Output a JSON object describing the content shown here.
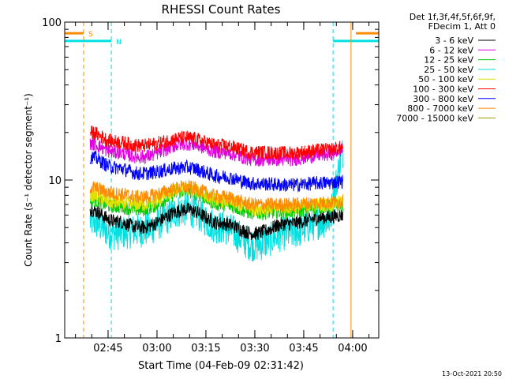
{
  "chart_data": {
    "type": "line",
    "title": "RHESSI Count Rates",
    "xlabel": "Start Time (04-Feb-09 02:31:42)",
    "ylabel": "Count Rate (s⁻¹ detector segment⁻¹)",
    "y_scale": "log",
    "ylim": [
      1,
      100
    ],
    "y_ticks": [
      1,
      10,
      100
    ],
    "y_tick_labels": [
      "1",
      "10",
      "100"
    ],
    "x_range": [
      "02:31:42",
      "04:08:00"
    ],
    "x_ticks": [
      "02:45",
      "03:00",
      "03:15",
      "03:30",
      "03:45",
      "04:00"
    ],
    "legend_header": [
      "Det 1f,3f,4f,5f,6f,9f,",
      "FDecim 1, Att 0"
    ],
    "legend_position": "right-outside",
    "timestamp": "13-Oct-2021 20:50",
    "series": [
      {
        "name": "3 - 6 keV",
        "color": "#000000",
        "x": [
          "02:39:30",
          "02:47:00",
          "02:55:00",
          "03:09:00",
          "03:20:00",
          "03:30:00",
          "03:40:00",
          "03:52:00",
          "03:57:00"
        ],
        "values": [
          6.5,
          5.5,
          5.0,
          6.5,
          5.3,
          4.6,
          5.3,
          5.8,
          6.0
        ]
      },
      {
        "name": "6 - 12 keV",
        "color": "#e000e0",
        "x": [
          "02:39:30",
          "02:47:00",
          "02:55:00",
          "03:09:00",
          "03:20:00",
          "03:30:00",
          "03:40:00",
          "03:52:00",
          "03:57:00"
        ],
        "values": [
          17.0,
          15.0,
          14.0,
          17.0,
          15.0,
          13.5,
          13.5,
          14.5,
          15.5
        ]
      },
      {
        "name": "12 - 25 keV",
        "color": "#00cc00",
        "x": [
          "02:39:30",
          "02:47:00",
          "02:55:00",
          "03:09:00",
          "03:20:00",
          "03:30:00",
          "03:40:00",
          "03:52:00",
          "03:57:00"
        ],
        "values": [
          7.5,
          6.8,
          6.5,
          8.5,
          7.0,
          6.2,
          6.3,
          6.8,
          7.0
        ]
      },
      {
        "name": "25 - 50 keV",
        "color": "#00e0e0",
        "x": [
          "02:39:30",
          "02:47:00",
          "02:55:00",
          "03:09:00",
          "03:20:00",
          "03:30:00",
          "03:40:00",
          "03:52:00",
          "03:57:00"
        ],
        "values": [
          5.5,
          4.6,
          4.8,
          6.5,
          5.0,
          3.9,
          4.6,
          5.5,
          8.5
        ]
      },
      {
        "name": "50 - 100 keV",
        "color": "#e0e000",
        "x": [
          "02:39:30",
          "02:47:00",
          "02:55:00",
          "03:09:00",
          "03:20:00",
          "03:30:00",
          "03:40:00",
          "03:52:00",
          "03:57:00"
        ],
        "values": [
          8.0,
          7.2,
          7.0,
          8.8,
          7.4,
          6.6,
          6.7,
          7.0,
          7.2
        ]
      },
      {
        "name": "100 - 300 keV",
        "color": "#ff0000",
        "x": [
          "02:39:30",
          "02:47:00",
          "02:55:00",
          "03:09:00",
          "03:20:00",
          "03:30:00",
          "03:40:00",
          "03:52:00",
          "03:57:00"
        ],
        "values": [
          20.0,
          17.5,
          16.5,
          18.5,
          16.5,
          15.0,
          14.8,
          15.5,
          16.0
        ]
      },
      {
        "name": "300 - 800 keV",
        "color": "#0000ff",
        "x": [
          "02:39:30",
          "02:47:00",
          "02:55:00",
          "03:09:00",
          "03:20:00",
          "03:30:00",
          "03:40:00",
          "03:52:00",
          "03:57:00"
        ],
        "values": [
          14.0,
          12.0,
          11.0,
          12.0,
          10.5,
          9.5,
          9.3,
          9.6,
          9.8
        ]
      },
      {
        "name": "800 - 7000 keV",
        "color": "#ff8c00",
        "x": [
          "02:39:30",
          "02:47:00",
          "02:55:00",
          "03:09:00",
          "03:20:00",
          "03:30:00",
          "03:40:00",
          "03:52:00",
          "03:57:00"
        ],
        "values": [
          9.0,
          8.2,
          7.8,
          9.0,
          7.8,
          7.0,
          7.0,
          7.2,
          7.3
        ]
      },
      {
        "name": "7000 - 15000 keV",
        "color": "#999900",
        "x": [],
        "values": []
      }
    ],
    "attenuator_bar": {
      "label": "S",
      "color": "#ff8c00",
      "y": 85,
      "segments": [
        [
          "02:31:42",
          "02:37:30"
        ],
        [
          "04:01:00",
          "04:08:00"
        ]
      ],
      "verticals": [
        "02:37:30",
        "03:59:30",
        "04:08:00"
      ]
    },
    "night_bar": {
      "label": "N",
      "color": "#00e0e0",
      "y": 76,
      "segments": [
        [
          "02:31:42",
          "02:46:00"
        ],
        [
          "03:54:00",
          "04:08:00"
        ]
      ],
      "verticals": [
        "02:31:42",
        "02:46:00",
        "03:54:00",
        "04:08:00"
      ]
    }
  }
}
